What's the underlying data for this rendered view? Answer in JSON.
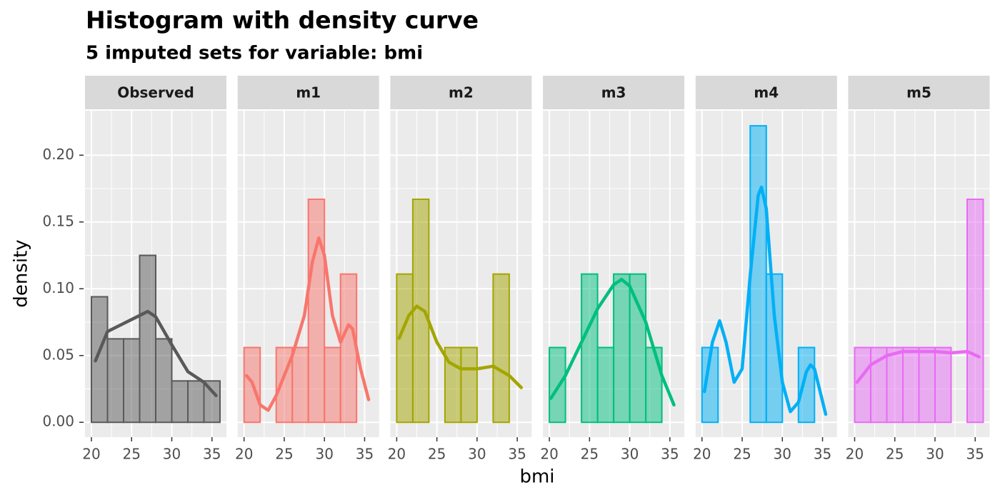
{
  "title": "Histogram with density curve",
  "subtitle": "5  imputed sets for variable:  bmi",
  "xlabel": "bmi",
  "ylabel": "density",
  "xlim": [
    19.2,
    36.8
  ],
  "xticks": [
    20,
    25,
    30,
    35
  ],
  "ylim": [
    -0.0111,
    0.2333
  ],
  "yticks": [
    {
      "value": 0,
      "label": "0.00"
    },
    {
      "value": 0.05,
      "label": "0.05"
    },
    {
      "value": 0.1,
      "label": "0.10"
    },
    {
      "value": 0.15,
      "label": "0.15"
    },
    {
      "value": 0.2,
      "label": "0.20"
    }
  ],
  "grid": true,
  "chart_data": [
    {
      "type": "histogram",
      "facet": "Observed",
      "color": "#595959",
      "bins": [
        20,
        22,
        24,
        26,
        28,
        30,
        32,
        34,
        36
      ],
      "values": [
        0.094,
        0.0625,
        0.0625,
        0.125,
        0.0625,
        0.031,
        0.031,
        0.031
      ],
      "density": {
        "x": [
          20.5,
          22,
          24,
          26,
          27,
          28,
          30,
          32,
          34,
          35.5
        ],
        "y": [
          0.046,
          0.068,
          0.074,
          0.08,
          0.083,
          0.079,
          0.058,
          0.038,
          0.03,
          0.02
        ]
      }
    },
    {
      "type": "histogram",
      "facet": "m1",
      "color": "#F8766D",
      "bins": [
        20,
        22,
        24,
        26,
        28,
        30,
        32,
        34,
        36
      ],
      "values": [
        0.056,
        0,
        0.056,
        0.056,
        0.167,
        0.056,
        0.111,
        0
      ],
      "density": {
        "x": [
          20.3,
          21,
          22,
          23,
          24,
          26,
          27.5,
          28.5,
          29.3,
          30,
          31,
          32,
          33,
          33.5,
          34.5,
          35.5
        ],
        "y": [
          0.035,
          0.03,
          0.013,
          0.009,
          0.02,
          0.05,
          0.08,
          0.12,
          0.138,
          0.125,
          0.08,
          0.06,
          0.073,
          0.07,
          0.04,
          0.017
        ]
      }
    },
    {
      "type": "histogram",
      "facet": "m2",
      "color": "#A3A500",
      "bins": [
        20,
        22,
        24,
        26,
        28,
        30,
        32,
        34,
        36
      ],
      "values": [
        0.111,
        0.167,
        0,
        0.056,
        0.056,
        0,
        0.111,
        0
      ],
      "density": {
        "x": [
          20.3,
          21.5,
          22.5,
          23.5,
          25,
          26.5,
          28,
          30,
          32,
          34,
          35.5
        ],
        "y": [
          0.063,
          0.08,
          0.087,
          0.083,
          0.06,
          0.045,
          0.04,
          0.04,
          0.042,
          0.035,
          0.026
        ]
      }
    },
    {
      "type": "histogram",
      "facet": "m3",
      "color": "#00BF7D",
      "bins": [
        20,
        22,
        24,
        26,
        28,
        30,
        32,
        34,
        36
      ],
      "values": [
        0.056,
        0,
        0.111,
        0.056,
        0.111,
        0.111,
        0.056,
        0
      ],
      "density": {
        "x": [
          20.2,
          22,
          24,
          26,
          28,
          29,
          30,
          32,
          34,
          35.5
        ],
        "y": [
          0.018,
          0.035,
          0.06,
          0.085,
          0.103,
          0.107,
          0.102,
          0.075,
          0.035,
          0.013
        ]
      }
    },
    {
      "type": "histogram",
      "facet": "m4",
      "color": "#00B0F6",
      "bins": [
        20,
        22,
        24,
        26,
        28,
        30,
        32,
        34,
        36
      ],
      "values": [
        0.056,
        0,
        0,
        0.222,
        0.111,
        0,
        0.056,
        0
      ],
      "density": {
        "x": [
          20.3,
          21.3,
          22.2,
          23,
          24,
          25,
          26,
          27,
          27.4,
          28,
          29,
          30,
          31,
          32,
          33,
          33.5,
          34,
          35.4
        ],
        "y": [
          0.023,
          0.06,
          0.076,
          0.06,
          0.03,
          0.04,
          0.11,
          0.17,
          0.176,
          0.16,
          0.08,
          0.03,
          0.008,
          0.015,
          0.038,
          0.043,
          0.04,
          0.006
        ]
      }
    },
    {
      "type": "histogram",
      "facet": "m5",
      "color": "#E76BF3",
      "bins": [
        20,
        22,
        24,
        26,
        28,
        30,
        32,
        34,
        36
      ],
      "values": [
        0.056,
        0.056,
        0.056,
        0.056,
        0.056,
        0.056,
        0,
        0.167
      ],
      "density": {
        "x": [
          20.3,
          22,
          24,
          26,
          28,
          30,
          32,
          34,
          35.5
        ],
        "y": [
          0.03,
          0.043,
          0.05,
          0.053,
          0.053,
          0.053,
          0.052,
          0.053,
          0.049
        ]
      }
    }
  ]
}
